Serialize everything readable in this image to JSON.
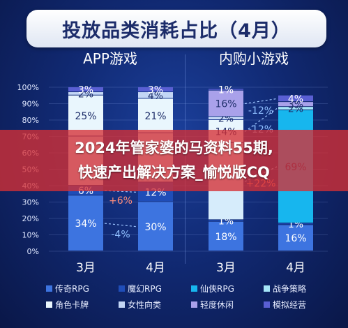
{
  "title": "投放品类消耗占比（4月）",
  "panels": {
    "left_title": "APP游戏",
    "right_title": "内购小游戏"
  },
  "overlay": {
    "line1": "2024年管家婆的马资料55期,",
    "line2": "快速产出解决方案_愉悦版CQ"
  },
  "legend": [
    {
      "label": "传奇RPG",
      "color": "#3d74e0"
    },
    {
      "label": "魔幻RPG",
      "color": "#1f4db8"
    },
    {
      "label": "仙侠RPG",
      "color": "#17b6ee"
    },
    {
      "label": "战争策略",
      "color": "#a6e6f8"
    },
    {
      "label": "角色卡牌",
      "color": "#e9f6fd"
    },
    {
      "label": "女性向类",
      "color": "#c3d6f5"
    },
    {
      "label": "轻度休闲",
      "color": "#a9a1ea"
    },
    {
      "label": "模拟经营",
      "color": "#5a5fd3"
    }
  ],
  "chart_data": {
    "type": "bar",
    "stacked": true,
    "ylim": [
      0,
      100
    ],
    "yticks": [
      "0%",
      "10%",
      "20%",
      "30%",
      "40%",
      "50%",
      "60%",
      "70%",
      "80%",
      "90%",
      "100%"
    ],
    "panels": [
      {
        "title": "APP游戏",
        "categories": [
          "3月",
          "4月"
        ],
        "bars": [
          {
            "category": "3月",
            "segments": [
              {
                "series": "传奇RPG",
                "value": 34,
                "label": "34%"
              },
              {
                "series": "魔幻RPG",
                "value": 6,
                "label": "6%"
              },
              {
                "series": "未标注",
                "value": 30,
                "label": ""
              },
              {
                "series": "角色卡牌",
                "value": 25,
                "label": "25%"
              },
              {
                "series": "女性向类",
                "value": 2,
                "label": "2%"
              },
              {
                "series": "模拟经营",
                "value": 3,
                "label": "3%"
              }
            ]
          },
          {
            "category": "4月",
            "segments": [
              {
                "series": "传奇RPG",
                "value": 30,
                "label": "30%"
              },
              {
                "series": "魔幻RPG",
                "value": 12,
                "label": "12%"
              },
              {
                "series": "未标注",
                "value": 30,
                "label": ""
              },
              {
                "series": "角色卡牌",
                "value": 21,
                "label": "21%"
              },
              {
                "series": "女性向类",
                "value": 4,
                "label": "4%"
              },
              {
                "series": "模拟经营",
                "value": 3,
                "label": "3%"
              }
            ]
          }
        ],
        "annotations": [
          {
            "text": "-4%",
            "between": [
              "3月",
              "4月"
            ],
            "segment": 0
          },
          {
            "text": "+6%",
            "between": [
              "3月",
              "4月"
            ],
            "segment": 1
          }
        ]
      },
      {
        "title": "内购小游戏",
        "categories": [
          "3月",
          "4月"
        ],
        "bars": [
          {
            "category": "3月",
            "segments": [
              {
                "series": "传奇RPG",
                "value": 18,
                "label": "18%"
              },
              {
                "series": "魔幻RPG",
                "value": 1,
                "label": "1%"
              },
              {
                "series": "未标注",
                "value": 47,
                "label": ""
              },
              {
                "series": "角色卡牌",
                "value": 14,
                "label": "14%"
              },
              {
                "series": "女性向类",
                "value": 2,
                "label": "2%"
              },
              {
                "series": "轻度休闲",
                "value": 16,
                "label": "16%"
              },
              {
                "series": "模拟经营",
                "value": 1,
                "label": "1%"
              }
            ]
          },
          {
            "category": "4月",
            "segments": [
              {
                "series": "传奇RPG",
                "value": 16,
                "label": "16%"
              },
              {
                "series": "魔幻RPG",
                "value": 1,
                "label": "1%"
              },
              {
                "series": "仙侠RPG",
                "value": 69,
                "label": "69%"
              },
              {
                "series": "战争策略",
                "value": 2,
                "label": "2%"
              },
              {
                "series": "轻度休闲",
                "value": 3,
                "label": "3%"
              },
              {
                "series": "模拟经营",
                "value": 4,
                "label": "4%"
              }
            ]
          }
        ],
        "annotations": [
          {
            "text": "-12%",
            "between": [
              "3月",
              "4月"
            ],
            "segment": 5
          },
          {
            "text": "-12%",
            "between": [
              "3月",
              "4月"
            ],
            "segment": 3
          },
          {
            "text": "+22%",
            "between": [
              "3月",
              "4月"
            ],
            "segment": 2
          }
        ]
      }
    ]
  }
}
